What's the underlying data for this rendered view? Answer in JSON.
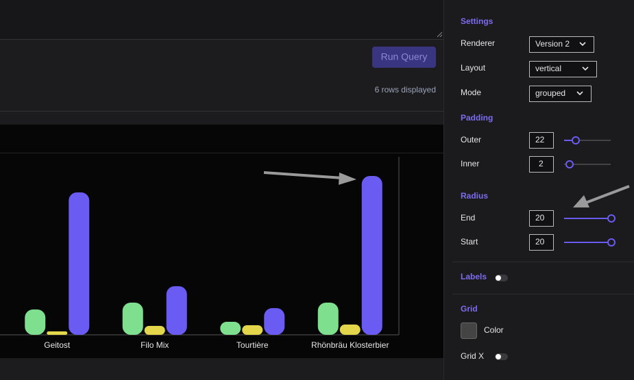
{
  "editor": {
    "run_button": "Run Query",
    "status": "6 rows displayed"
  },
  "settings": {
    "title": "Settings",
    "renderer": {
      "label": "Renderer",
      "value": "Version 2"
    },
    "layout": {
      "label": "Layout",
      "value": "vertical"
    },
    "mode": {
      "label": "Mode",
      "value": "grouped"
    },
    "padding": {
      "title": "Padding",
      "outer": {
        "label": "Outer",
        "value": 22
      },
      "inner": {
        "label": "Inner",
        "value": 2
      }
    },
    "radius": {
      "title": "Radius",
      "end": {
        "label": "End",
        "value": 20
      },
      "start": {
        "label": "Start",
        "value": 20
      }
    },
    "labels": {
      "title": "Labels"
    },
    "grid": {
      "title": "Grid",
      "color": "Color",
      "grid_x": "Grid X"
    }
  },
  "chart_data": {
    "type": "bar",
    "mode": "grouped",
    "categories": [
      "Geitost",
      "Filo Mix",
      "Tourtière",
      "Rhönbräu Klosterbier"
    ],
    "series": [
      {
        "color": "#7ee08f",
        "values": [
          37,
          47,
          19,
          47
        ]
      },
      {
        "color": "#e3d64a",
        "values": [
          5,
          13,
          14,
          15
        ]
      },
      {
        "color": "#6a5cf2",
        "values": [
          208,
          71,
          39,
          232
        ]
      }
    ],
    "ylim": [
      0,
      260
    ]
  }
}
